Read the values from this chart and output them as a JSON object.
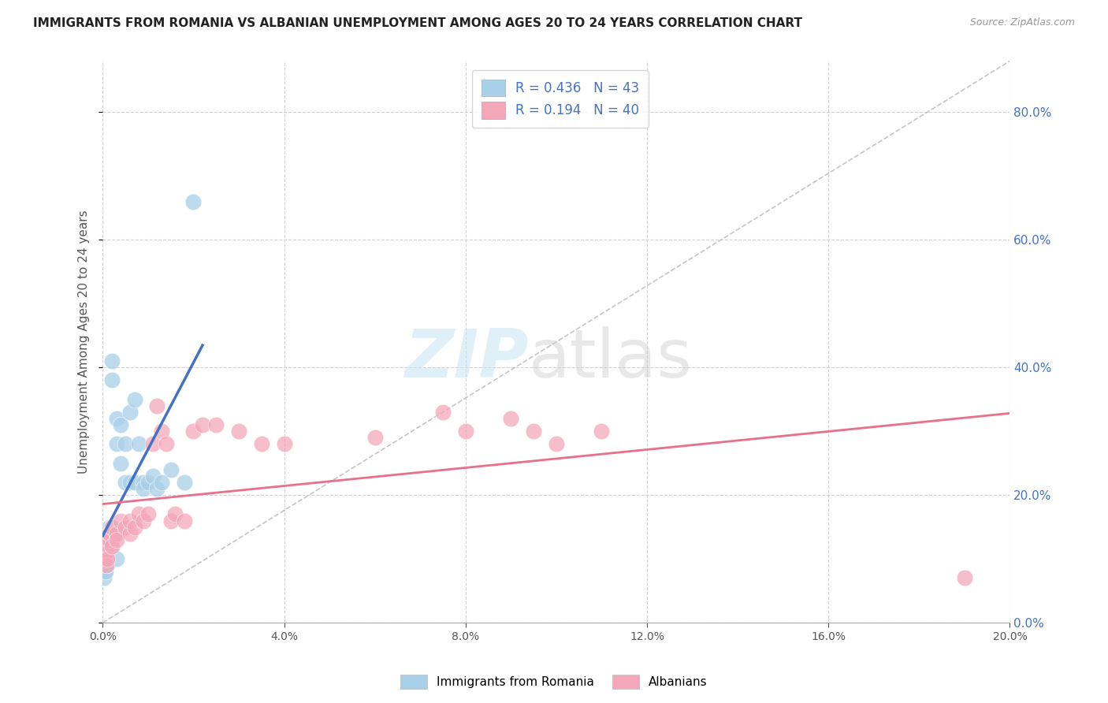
{
  "title": "IMMIGRANTS FROM ROMANIA VS ALBANIAN UNEMPLOYMENT AMONG AGES 20 TO 24 YEARS CORRELATION CHART",
  "source": "Source: ZipAtlas.com",
  "ylabel": "Unemployment Among Ages 20 to 24 years",
  "legend_r1": "R = 0.436",
  "legend_n1": "N = 43",
  "legend_r2": "R = 0.194",
  "legend_n2": "N = 40",
  "legend_label1": "Immigrants from Romania",
  "legend_label2": "Albanians",
  "color_romania": "#A8D0E8",
  "color_albanian": "#F4A7B9",
  "color_line_romania": "#4472C4",
  "color_line_albanian": "#E8708A",
  "color_diag": "#BBBBBB",
  "xlim": [
    0,
    0.2
  ],
  "ylim": [
    0,
    0.88
  ],
  "romania_x": [
    0.0003,
    0.0004,
    0.0005,
    0.0006,
    0.0007,
    0.0008,
    0.0009,
    0.001,
    0.001,
    0.001,
    0.001,
    0.0012,
    0.0013,
    0.0015,
    0.0015,
    0.0017,
    0.002,
    0.002,
    0.002,
    0.002,
    0.002,
    0.003,
    0.003,
    0.003,
    0.003,
    0.004,
    0.004,
    0.005,
    0.005,
    0.006,
    0.006,
    0.007,
    0.007,
    0.008,
    0.009,
    0.009,
    0.01,
    0.011,
    0.012,
    0.013,
    0.015,
    0.018,
    0.02
  ],
  "romania_y": [
    0.07,
    0.08,
    0.09,
    0.1,
    0.08,
    0.11,
    0.1,
    0.12,
    0.1,
    0.09,
    0.11,
    0.13,
    0.14,
    0.15,
    0.14,
    0.13,
    0.41,
    0.38,
    0.15,
    0.13,
    0.12,
    0.28,
    0.32,
    0.14,
    0.1,
    0.31,
    0.25,
    0.28,
    0.22,
    0.33,
    0.22,
    0.35,
    0.22,
    0.28,
    0.22,
    0.21,
    0.22,
    0.23,
    0.21,
    0.22,
    0.24,
    0.22,
    0.66
  ],
  "albanian_x": [
    0.0004,
    0.0006,
    0.0008,
    0.001,
    0.001,
    0.0013,
    0.0015,
    0.002,
    0.002,
    0.003,
    0.003,
    0.004,
    0.005,
    0.006,
    0.006,
    0.007,
    0.008,
    0.009,
    0.01,
    0.011,
    0.012,
    0.013,
    0.014,
    0.015,
    0.016,
    0.018,
    0.02,
    0.022,
    0.025,
    0.03,
    0.035,
    0.04,
    0.06,
    0.075,
    0.08,
    0.09,
    0.095,
    0.1,
    0.11,
    0.19
  ],
  "albanian_y": [
    0.1,
    0.11,
    0.09,
    0.12,
    0.1,
    0.13,
    0.14,
    0.12,
    0.15,
    0.14,
    0.13,
    0.16,
    0.15,
    0.14,
    0.16,
    0.15,
    0.17,
    0.16,
    0.17,
    0.28,
    0.34,
    0.3,
    0.28,
    0.16,
    0.17,
    0.16,
    0.3,
    0.31,
    0.31,
    0.3,
    0.28,
    0.28,
    0.29,
    0.33,
    0.3,
    0.32,
    0.3,
    0.28,
    0.3,
    0.07
  ]
}
